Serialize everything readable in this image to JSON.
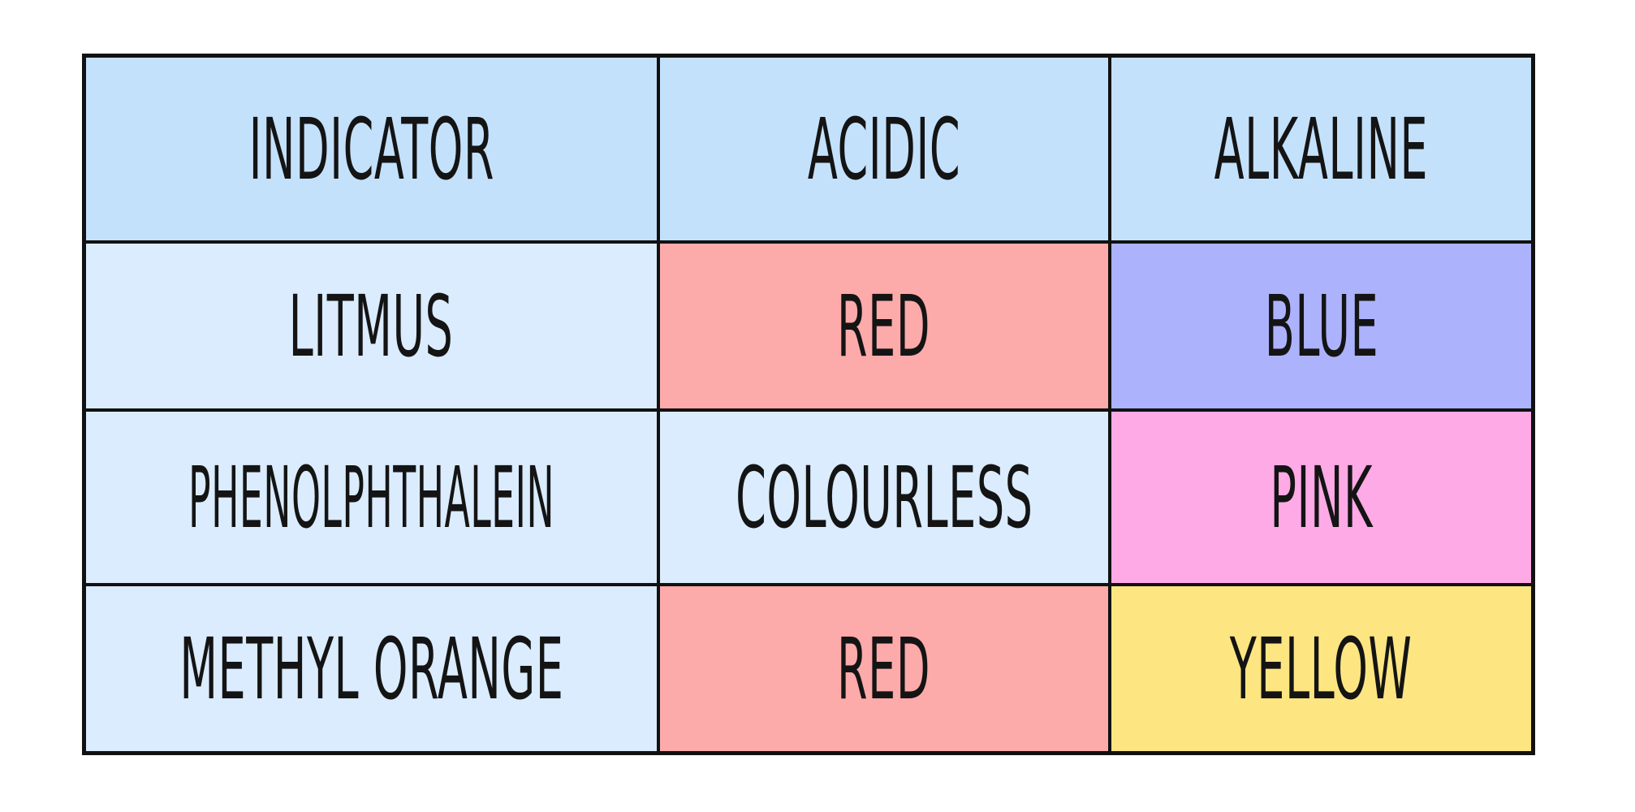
{
  "table": {
    "header": {
      "cells": [
        {
          "text": "INDICATOR",
          "bg": "#c4e1fc"
        },
        {
          "text": "ACIDIC",
          "bg": "#c4e1fc"
        },
        {
          "text": "ALKALINE",
          "bg": "#c4e1fc"
        }
      ]
    },
    "rows": [
      {
        "cells": [
          {
            "text": "LITMUS",
            "bg": "#daecfd"
          },
          {
            "text": "RED",
            "bg": "#fdaaaa"
          },
          {
            "text": "BLUE",
            "bg": "#adb2fc"
          }
        ]
      },
      {
        "cells": [
          {
            "text": "PHENOLPHTHALEIN",
            "bg": "#daecfd"
          },
          {
            "text": "COLOURLESS",
            "bg": "#daecfd"
          },
          {
            "text": "PINK",
            "bg": "#fdaae6"
          }
        ]
      },
      {
        "cells": [
          {
            "text": "METHYL ORANGE",
            "bg": "#daecfd"
          },
          {
            "text": "RED",
            "bg": "#fdaaaa"
          },
          {
            "text": "YELLOW",
            "bg": "#fde682"
          }
        ]
      }
    ]
  }
}
